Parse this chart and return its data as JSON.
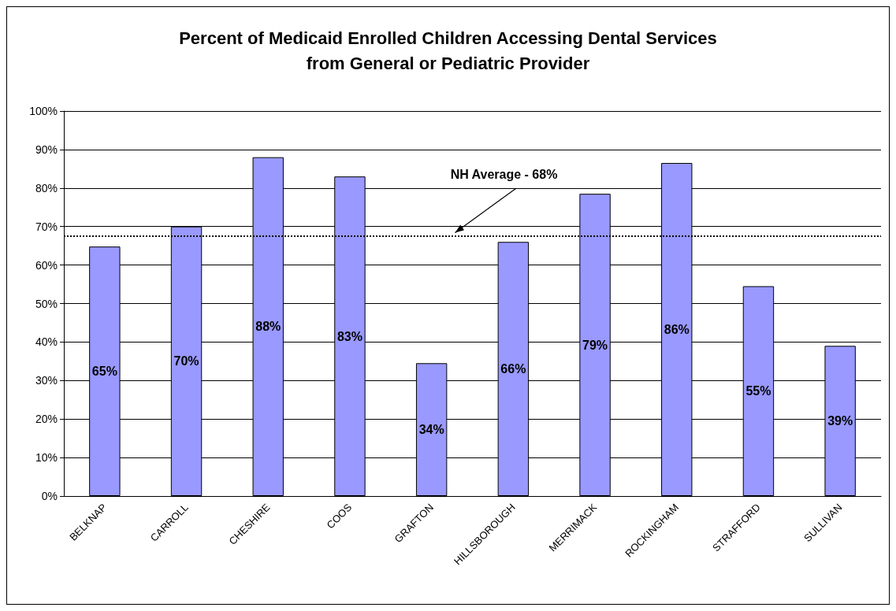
{
  "chart_data": {
    "type": "bar",
    "title": "Percent of Medicaid Enrolled Children Accessing Dental Services\nfrom General or Pediatric Provider",
    "categories": [
      "BELKNAP",
      "CARROLL",
      "CHESHIRE",
      "COOS",
      "GRAFTON",
      "HILLSBOROUGH",
      "MERRIMACK",
      "ROCKINGHAM",
      "STRAFFORD",
      "SULLIVAN"
    ],
    "values": [
      64.8,
      70,
      88,
      83,
      34.5,
      66,
      78.5,
      86.5,
      54.5,
      39
    ],
    "value_labels": [
      "65%",
      "70%",
      "88%",
      "83%",
      "34%",
      "66%",
      "79%",
      "86%",
      "55%",
      "39%"
    ],
    "color": "#9999ff",
    "ylim": [
      0,
      100
    ],
    "yticks": [
      {
        "value": 0,
        "label": "0%"
      },
      {
        "value": 10,
        "label": "10%"
      },
      {
        "value": 20,
        "label": "20%"
      },
      {
        "value": 30,
        "label": "30%"
      },
      {
        "value": 40,
        "label": "40%"
      },
      {
        "value": 50,
        "label": "50%"
      },
      {
        "value": 60,
        "label": "60%"
      },
      {
        "value": 70,
        "label": "70%"
      },
      {
        "value": 80,
        "label": "80%"
      },
      {
        "value": 90,
        "label": "90%"
      },
      {
        "value": 100,
        "label": "100%"
      }
    ],
    "grid": "y",
    "ref_lines": [
      {
        "axis": "y",
        "value": 67.6,
        "label": "NH Average - 68%",
        "line_style": "dotted",
        "color": "#000000"
      }
    ]
  }
}
